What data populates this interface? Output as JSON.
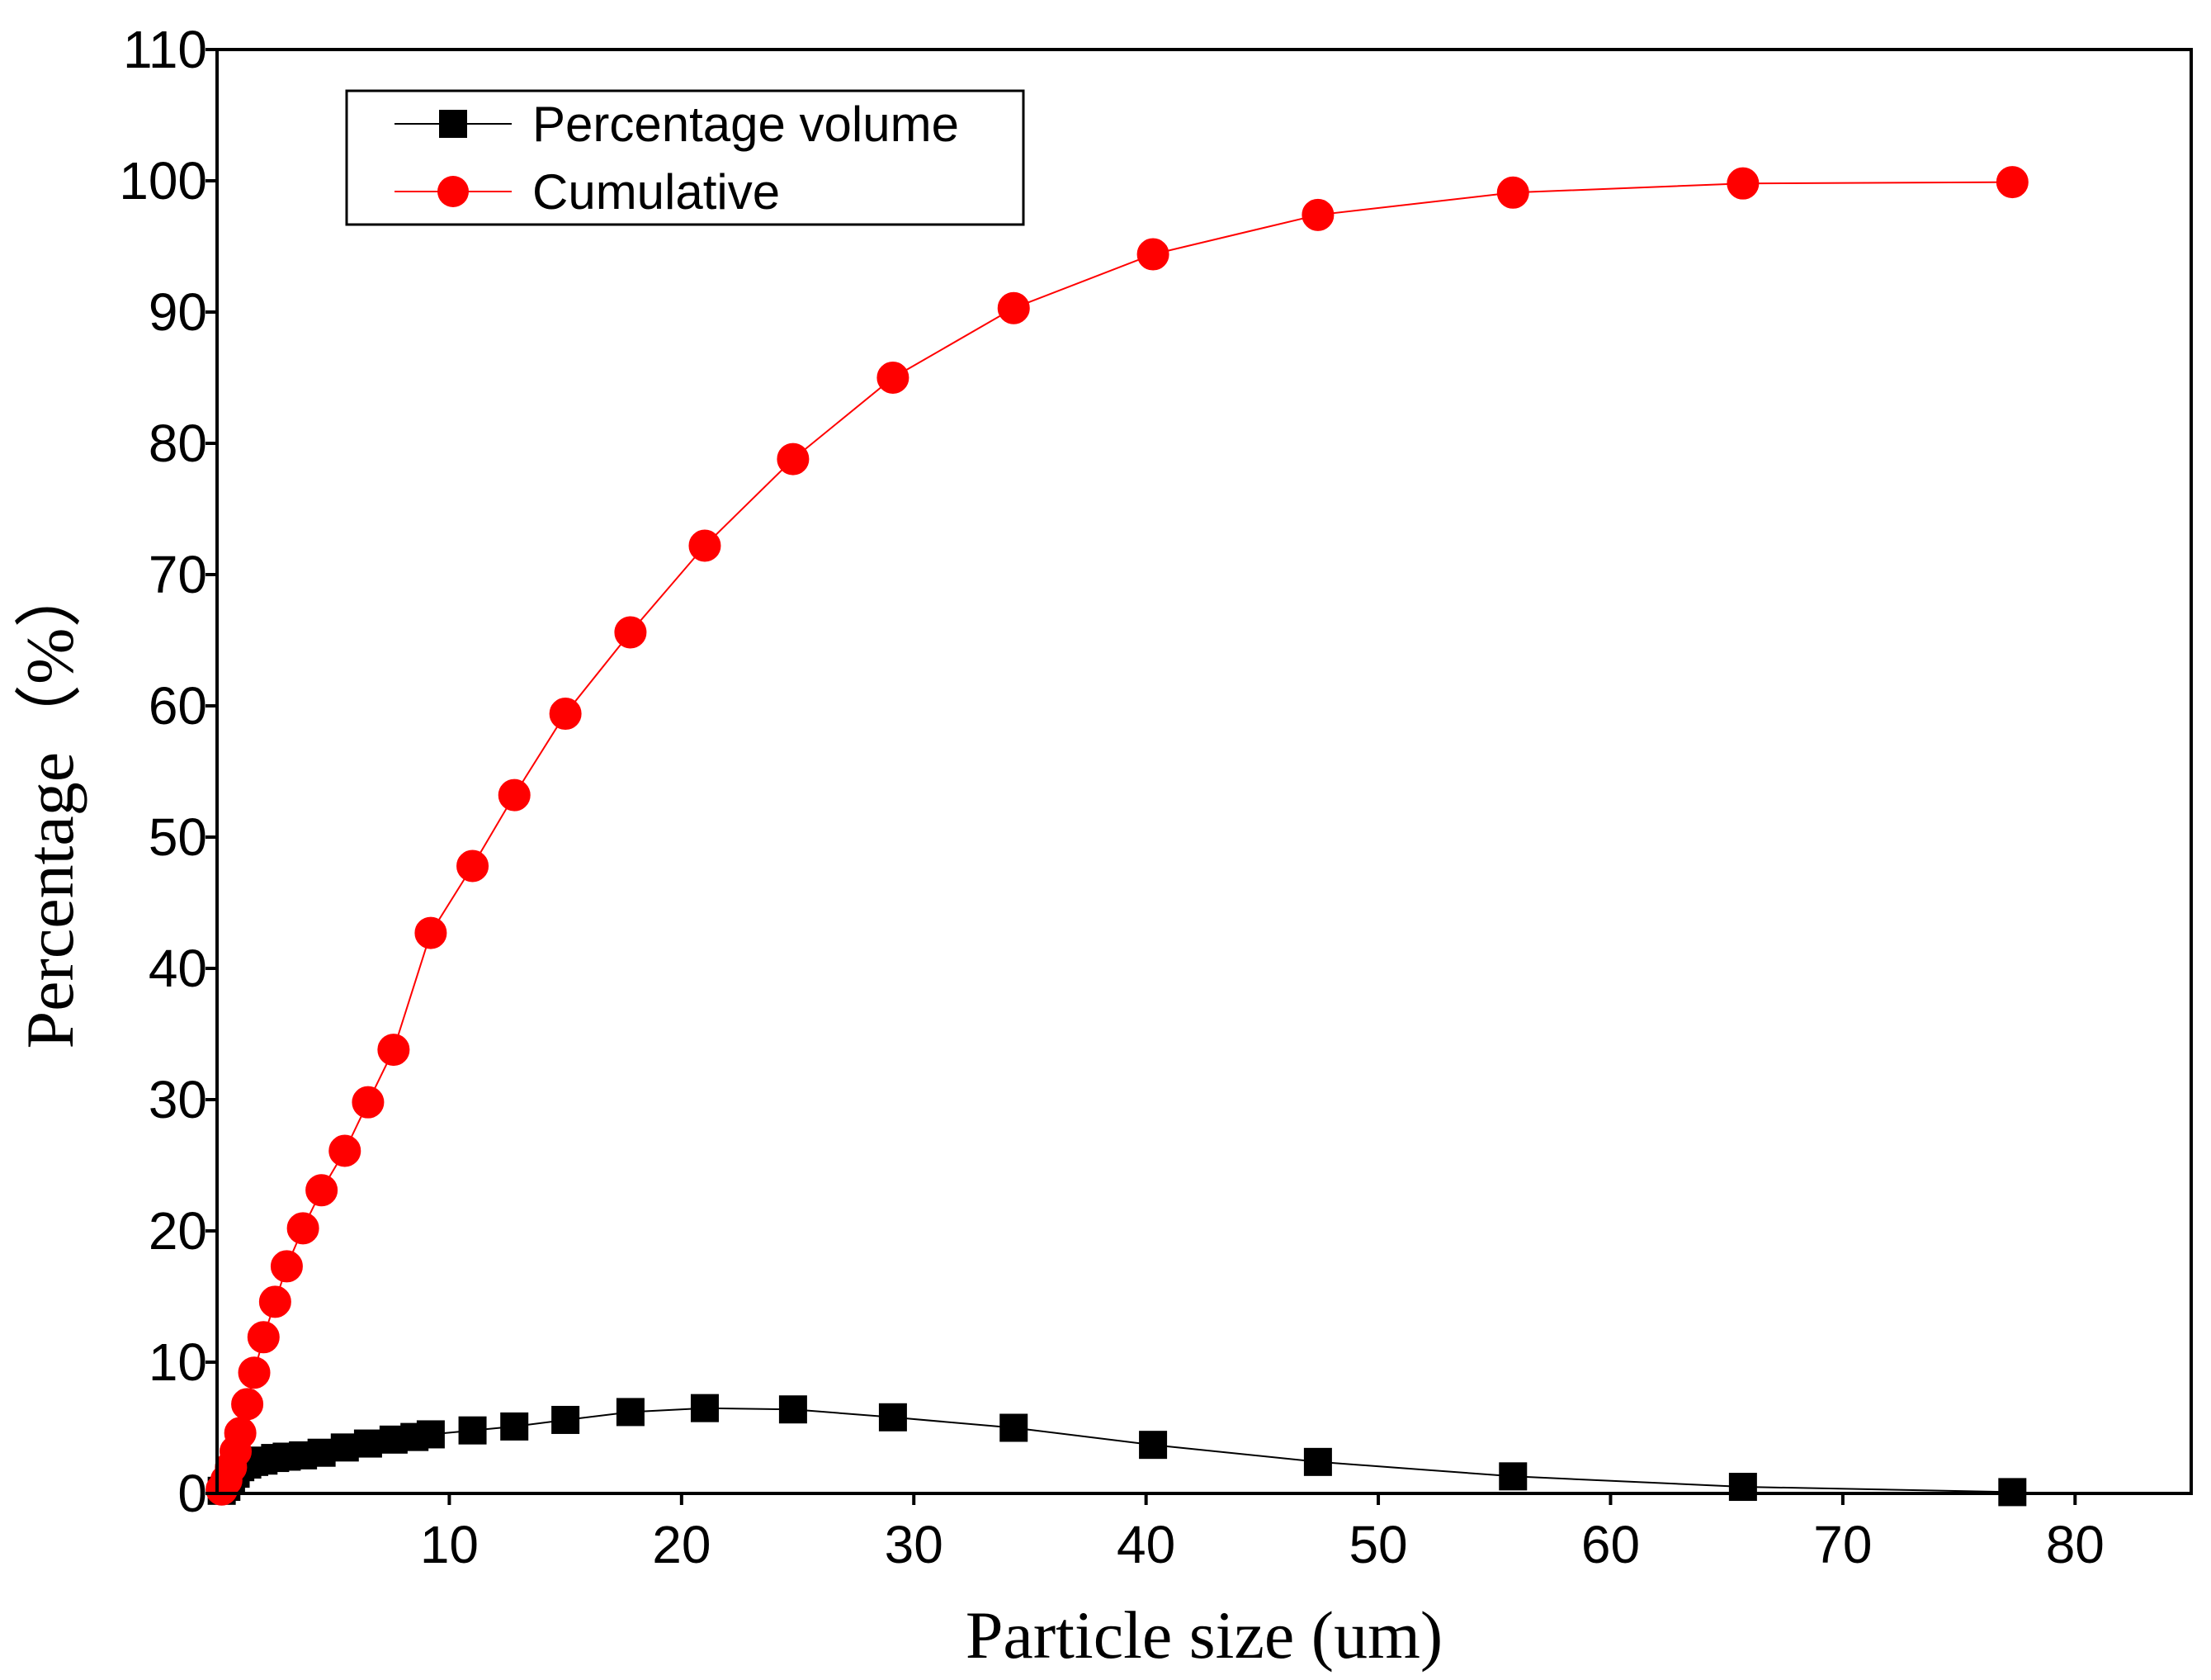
{
  "chart_data": {
    "type": "line",
    "title": "",
    "xlabel": "Particle size (um)",
    "ylabel": "Percentage（%）",
    "xlim": [
      0,
      85
    ],
    "ylim": [
      0,
      110
    ],
    "xticks": [
      10,
      20,
      30,
      40,
      50,
      60,
      70,
      80
    ],
    "yticks": [
      0,
      10,
      20,
      30,
      40,
      50,
      60,
      70,
      80,
      90,
      100,
      110
    ],
    "legend_position": "top-left",
    "series": [
      {
        "name": "Percentage volume",
        "color": "#000000",
        "marker": "square",
        "x": [
          0.2,
          0.4,
          0.6,
          0.8,
          1.0,
          1.3,
          1.6,
          2.0,
          2.5,
          3.0,
          3.7,
          4.5,
          5.5,
          6.5,
          7.6,
          8.5,
          9.2,
          11.0,
          12.8,
          15.0,
          17.8,
          21.0,
          24.8,
          29.1,
          34.3,
          40.3,
          47.4,
          55.8,
          65.7,
          77.3
        ],
        "y": [
          0.2,
          0.5,
          1.0,
          1.5,
          2.0,
          2.2,
          2.4,
          2.5,
          2.7,
          2.8,
          2.9,
          3.1,
          3.5,
          3.8,
          4.1,
          4.3,
          4.5,
          4.8,
          5.1,
          5.6,
          6.2,
          6.5,
          6.4,
          5.8,
          5.0,
          3.7,
          2.4,
          1.3,
          0.5,
          0.1
        ]
      },
      {
        "name": "Cumulative",
        "color": "#ff0000",
        "marker": "circle",
        "x": [
          0.2,
          0.4,
          0.6,
          0.8,
          1.0,
          1.3,
          1.6,
          2.0,
          2.5,
          3.0,
          3.7,
          4.5,
          5.5,
          6.5,
          7.6,
          9.2,
          11.0,
          12.8,
          15.0,
          17.8,
          21.0,
          24.8,
          29.1,
          34.3,
          40.3,
          47.4,
          55.8,
          65.7,
          77.3
        ],
        "y": [
          0.3,
          1.0,
          2.0,
          3.2,
          4.6,
          6.8,
          9.2,
          11.9,
          14.6,
          17.3,
          20.2,
          23.1,
          26.1,
          29.8,
          33.8,
          42.7,
          47.8,
          53.2,
          59.4,
          65.6,
          72.2,
          78.8,
          85.0,
          90.3,
          94.4,
          97.4,
          99.1,
          99.8,
          99.9
        ]
      }
    ]
  }
}
